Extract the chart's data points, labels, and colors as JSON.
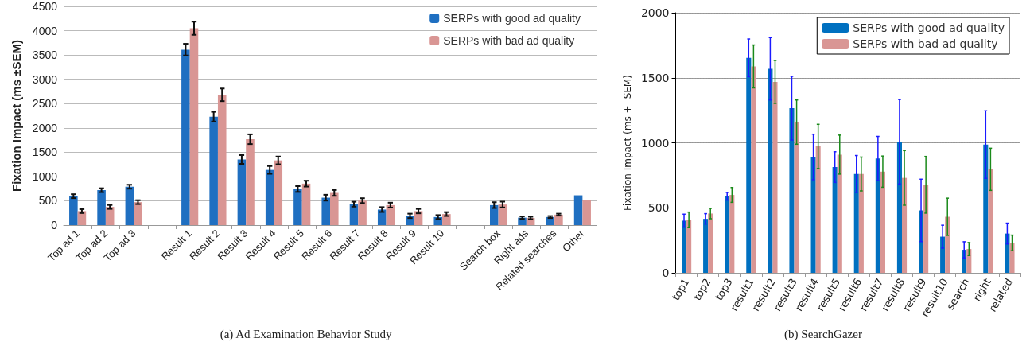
{
  "chart_data": [
    {
      "type": "bar",
      "ylabel": "Fixation Impact (ms ±SEM)",
      "annotations": [
        "(a) Ad Examination Behavior Study"
      ],
      "categories": [
        "Top ad 1",
        "Top ad 2",
        "Top ad 3",
        null,
        "Result 1",
        "Result 2",
        "Result 3",
        "Result 4",
        "Result 5",
        "Result 6",
        "Result 7",
        "Result 8",
        "Result 9",
        "Result 10",
        null,
        "Search box",
        "Right ads",
        "Related searches",
        "Other"
      ],
      "series": [
        {
          "name": "SERPs with good ad quality",
          "color": "#1f6fc1",
          "values": [
            595,
            718,
            790,
            null,
            3610,
            2230,
            1350,
            1135,
            742,
            564,
            430,
            320,
            190,
            166,
            null,
            411,
            153,
            166,
            613
          ],
          "errors": [
            40,
            40,
            40,
            null,
            120,
            100,
            90,
            80,
            60,
            60,
            50,
            50,
            45,
            40,
            null,
            60,
            25,
            20,
            null
          ]
        },
        {
          "name": "SERPs with bad ad quality",
          "color": "#d99694",
          "values": [
            288,
            374,
            472,
            null,
            4050,
            2680,
            1767,
            1331,
            853,
            662,
            503,
            411,
            288,
            227,
            null,
            423,
            147,
            215,
            515
          ],
          "errors": [
            40,
            40,
            40,
            null,
            135,
            130,
            100,
            80,
            60,
            60,
            50,
            50,
            45,
            40,
            null,
            60,
            25,
            20,
            null
          ]
        }
      ],
      "ylim": [
        0,
        4500
      ],
      "yticks": [
        0,
        500,
        1000,
        1500,
        2000,
        2500,
        3000,
        3500,
        4000,
        4500
      ],
      "grid": "y",
      "legend": "top right"
    },
    {
      "type": "bar",
      "ylabel": "Fixation Impact (ms +- SEM)",
      "annotations": [
        "(b) SearchGazer"
      ],
      "categories": [
        "top1",
        "top2",
        "top3",
        "result1",
        "result2",
        "result3",
        "result4",
        "result5",
        "result6",
        "result7",
        "result8",
        "result9",
        "result10",
        "search",
        "right",
        "related"
      ],
      "series": [
        {
          "name": "SERPs with good ad quality",
          "color": "#0070c0",
          "values": [
            401,
            415,
            589,
            1653,
            1569,
            1266,
            891,
            813,
            760,
            879,
            1008,
            480,
            278,
            177,
            986,
            302
          ],
          "errors": [
            50,
            40,
            30,
            145,
            240,
            245,
            175,
            118,
            142,
            170,
            325,
            240,
            88,
            62,
            260,
            80
          ]
        },
        {
          "name": "SERPs with bad ad quality",
          "color": "#d99694",
          "values": [
            407,
            456,
            599,
            1587,
            1468,
            1159,
            972,
            909,
            760,
            778,
            730,
            677,
            431,
            183,
            796,
            230
          ],
          "errors": [
            60,
            40,
            57,
            165,
            165,
            170,
            170,
            150,
            130,
            120,
            210,
            218,
            143,
            50,
            162,
            60
          ]
        }
      ],
      "ylim": [
        0,
        2000
      ],
      "yticks": [
        0,
        500,
        1000,
        1500,
        2000
      ],
      "grid": "y",
      "legend": "top right"
    }
  ]
}
